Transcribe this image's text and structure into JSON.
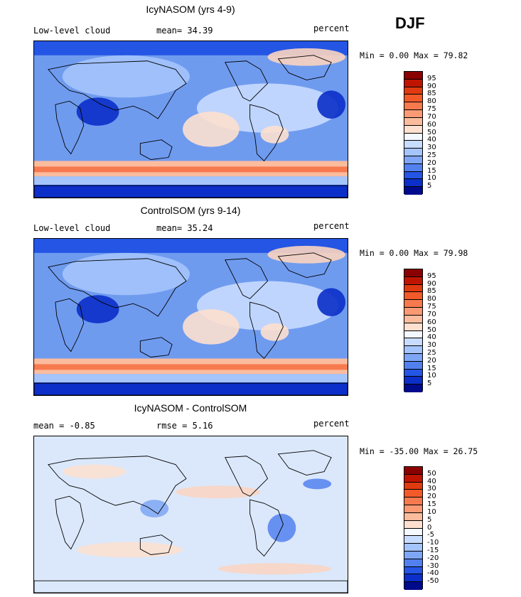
{
  "season": "DJF",
  "panels": [
    {
      "title": "IcyNASOM (yrs 4-9)",
      "left_label": "Low-level cloud",
      "middle_label": "mean=  34.39",
      "right_label": "percent",
      "minmax": "Min =   0.00 Max =  79.82",
      "kind": "abs",
      "colorbar": {
        "labels": [
          "95",
          "90",
          "85",
          "80",
          "75",
          "70",
          "60",
          "50",
          "40",
          "30",
          "25",
          "20",
          "15",
          "10",
          "5"
        ],
        "colors": [
          "#8b0000",
          "#bf1500",
          "#e03a10",
          "#f25a2a",
          "#f77a4e",
          "#fa9a74",
          "#fbbc9e",
          "#fde0cf",
          "#f4f8ff",
          "#c8dcff",
          "#a4c4fb",
          "#7ea6f5",
          "#5281ef",
          "#2455e4",
          "#0b2fc8",
          "#000a8c"
        ]
      }
    },
    {
      "title": "ControlSOM (yrs 9-14)",
      "left_label": "Low-level cloud",
      "middle_label": "mean=  35.24",
      "right_label": "percent",
      "minmax": "Min =   0.00 Max =  79.98",
      "kind": "abs",
      "colorbar": {
        "labels": [
          "95",
          "90",
          "85",
          "80",
          "75",
          "70",
          "60",
          "50",
          "40",
          "30",
          "25",
          "20",
          "15",
          "10",
          "5"
        ],
        "colors": [
          "#8b0000",
          "#bf1500",
          "#e03a10",
          "#f25a2a",
          "#f77a4e",
          "#fa9a74",
          "#fbbc9e",
          "#fde0cf",
          "#f4f8ff",
          "#c8dcff",
          "#a4c4fb",
          "#7ea6f5",
          "#5281ef",
          "#2455e4",
          "#0b2fc8",
          "#000a8c"
        ]
      }
    },
    {
      "title": "IcyNASOM - ControlSOM",
      "left_label": "mean =   -0.85",
      "middle_label": "rmse =    5.16",
      "right_label": "percent",
      "minmax": "Min = -35.00 Max =  26.75",
      "kind": "diff",
      "colorbar": {
        "labels": [
          "50",
          "40",
          "30",
          "20",
          "15",
          "10",
          "5",
          "0",
          "-5",
          "-10",
          "-15",
          "-20",
          "-30",
          "-40",
          "-50"
        ],
        "colors": [
          "#8b0000",
          "#bf1500",
          "#e03a10",
          "#f25a2a",
          "#f77a4e",
          "#fa9a74",
          "#fbbc9e",
          "#fde0cf",
          "#f4f8ff",
          "#c8dcff",
          "#a4c4fb",
          "#7ea6f5",
          "#5281ef",
          "#2455e4",
          "#0b2fc8",
          "#000a8c"
        ]
      }
    }
  ]
}
